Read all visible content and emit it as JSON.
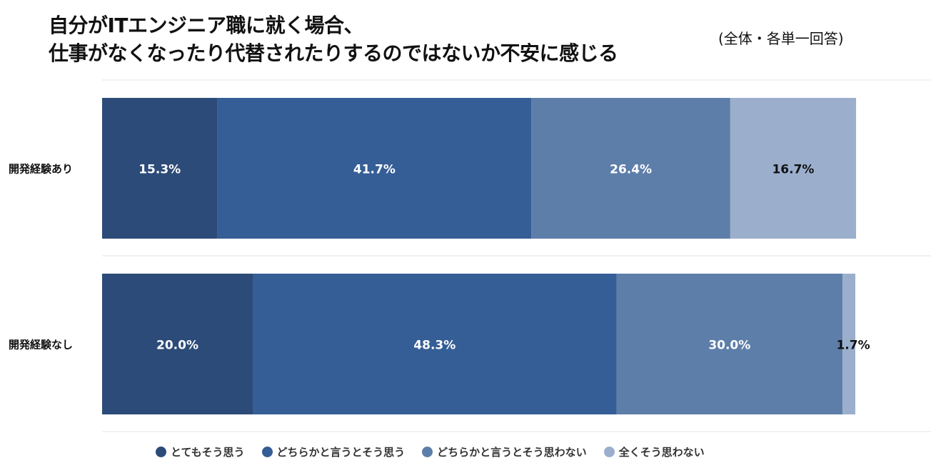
{
  "chart_data": {
    "type": "bar",
    "orientation": "horizontal",
    "stacked": true,
    "title_line1": "自分がITエンジニア職に就く場合、",
    "title_line2": "仕事がなくなったり代替されたりするのではないか不安に感じる",
    "subtitle": "(全体・各単一回答)",
    "categories": [
      "開発経験あり",
      "開発経験なし"
    ],
    "series": [
      {
        "name": "とてもそう思う",
        "values": [
          15.3,
          20.0
        ],
        "labels": [
          "15.3%",
          "20.0%"
        ],
        "color": "#2c4b78"
      },
      {
        "name": "どちらかと言うとそう思う",
        "values": [
          41.7,
          48.3
        ],
        "labels": [
          "41.7%",
          "48.3%"
        ],
        "color": "#355e96"
      },
      {
        "name": "どちらかと言うとそう思わない",
        "values": [
          26.4,
          30.0
        ],
        "labels": [
          "26.4%",
          "30.0%"
        ],
        "color": "#5e7eaa"
      },
      {
        "name": "全くそう思わない",
        "values": [
          16.7,
          1.7
        ],
        "labels": [
          "16.7%",
          "1.7%"
        ],
        "color": "#9bafcd"
      }
    ],
    "xlim": [
      0,
      100
    ],
    "legend_position": "bottom"
  }
}
